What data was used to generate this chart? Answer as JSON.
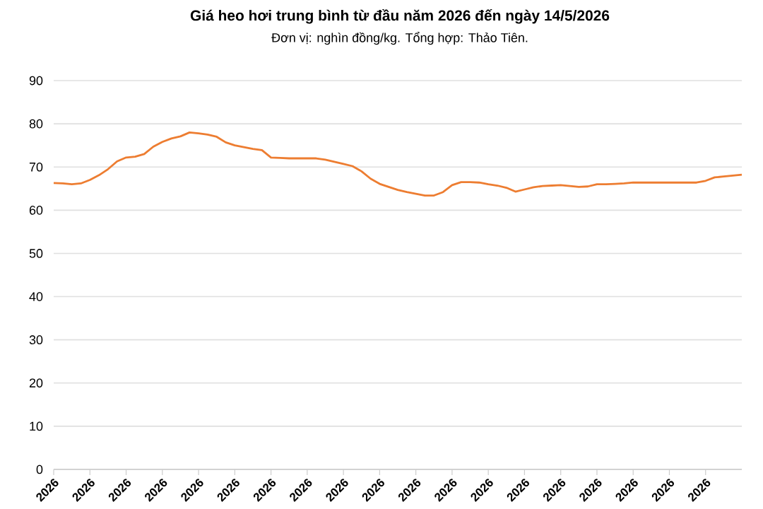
{
  "chart_data": {
    "type": "line",
    "title": "Giá heo hơi trung bình từ đầu năm 2026 đến ngày 14/5/2026",
    "subtitle": "Đơn vị: nghìn đồng/kg. Tổng hợp: Thảo Tiên.",
    "categories": [
      "2026",
      null,
      null,
      null,
      "2026",
      null,
      null,
      null,
      "2026",
      null,
      null,
      null,
      "2026",
      null,
      null,
      null,
      "2026",
      null,
      null,
      null,
      "2026",
      null,
      null,
      null,
      "2026",
      null,
      null,
      null,
      "2026",
      null,
      null,
      null,
      "2026",
      null,
      null,
      null,
      "2026",
      null,
      null,
      null,
      "2026",
      null,
      null,
      null,
      "2026",
      null,
      null,
      null,
      "2026",
      null,
      null,
      null,
      "2026",
      null,
      null,
      null,
      "2026",
      null,
      null,
      null,
      "2026",
      null,
      null,
      null,
      "2026",
      null,
      null,
      null,
      "2026",
      null,
      null,
      null,
      "2026",
      null,
      null,
      null,
      null
    ],
    "ylim": [
      0,
      90
    ],
    "yticks": [
      0,
      10,
      20,
      30,
      40,
      50,
      60,
      70,
      80,
      90
    ],
    "grid": "y",
    "marker": "none",
    "line_style": "solid",
    "series": [
      {
        "color": "#ed7d31",
        "values": [
          66.3,
          66.2,
          66,
          66.2,
          67,
          68.1,
          69.5,
          71.3,
          72.2,
          72.4,
          73,
          74.7,
          75.8,
          76.6,
          77.1,
          78,
          77.8,
          77.5,
          77,
          75.7,
          75,
          74.6,
          74.2,
          73.9,
          72.2,
          72.1,
          72,
          72,
          72,
          72,
          71.7,
          71.2,
          70.7,
          70.2,
          69,
          67.3,
          66.1,
          65.4,
          64.7,
          64.2,
          63.8,
          63.4,
          63.4,
          64.2,
          65.8,
          66.5,
          66.5,
          66.4,
          66,
          65.7,
          65.2,
          64.3,
          64.8,
          65.3,
          65.6,
          65.7,
          65.8,
          65.6,
          65.4,
          65.5,
          66,
          66,
          66.1,
          66.2,
          66.4,
          66.4,
          66.4,
          66.4,
          66.4,
          66.4,
          66.4,
          66.4,
          66.8,
          67.6,
          67.8,
          68,
          68.2
        ]
      }
    ]
  }
}
